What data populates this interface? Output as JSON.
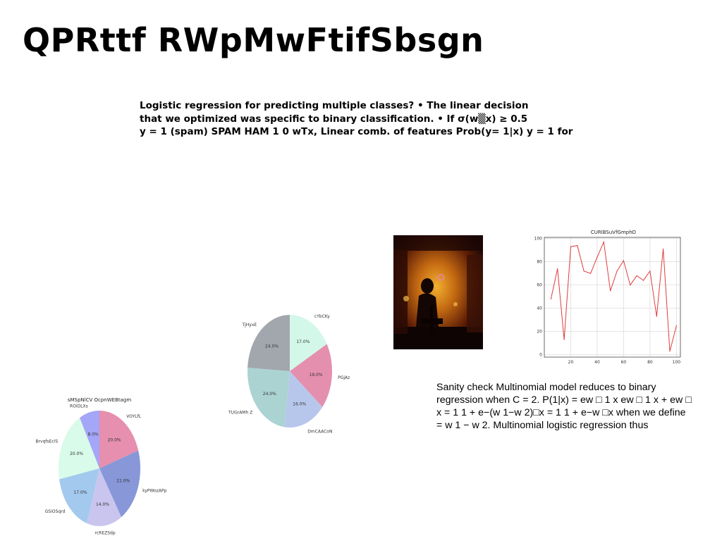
{
  "slide": {
    "title": "QPRttf RWpMwFtifSbsgn",
    "intro_lines": [
      "Logistic regression for predicting multiple classes? • The linear decision",
      "that we optimized was specific to binary classification. • If σ(w▒x) ≥ 0.5",
      "y = 1 (spam) SPAM HAM 1 0 wTx, Linear comb. of features Prob(y= 1|x) y = 1 for"
    ],
    "sanity_lines": [
      "Sanity check Multinomial model reduces to binary",
      "regression when C = 2. P(1|x) = ew □ 1 x ew □ 1 x + ew □",
      "x = 1 1 + e−(w 1−w 2)□x = 1 1 + e−w □x when we define",
      "= w 1 − w 2. Multinomial logistic regression thus"
    ],
    "photo_icon": "dark-orange-scene-photo"
  },
  "chart_data": [
    {
      "type": "pie",
      "title": "sMSpNlCV OcpnWEBtagm",
      "labels": [
        "VOYLfL",
        "kyPWozAPp",
        "rcREZSdp",
        "GSiOSqrd",
        "BrvqfsEclS",
        "ROiDLXs"
      ],
      "values": [
        20.0,
        21.0,
        14.0,
        17.0,
        20.0,
        8.0
      ],
      "value_labels": [
        "20.0%",
        "21.0%",
        "14.0%",
        "17.0%",
        "20.0%",
        "8.0%"
      ],
      "colors": [
        "#e68fae",
        "#8797d8",
        "#c9c5ee",
        "#a3c9ee",
        "#d9fbe9",
        "#a4a6f7"
      ]
    },
    {
      "type": "pie",
      "title": "",
      "labels": [
        "cYbCKy",
        "PGjAz",
        "DmCAACoN",
        "TUGrAMh Z",
        "TjHyxE"
      ],
      "values": [
        17.0,
        19.0,
        16.0,
        24.0,
        24.0
      ],
      "value_labels": [
        "17.0%",
        "19.0%",
        "16.0%",
        "24.0%",
        "24.0%"
      ],
      "colors": [
        "#d3f8ea",
        "#e58fae",
        "#b7c7ec",
        "#abd3d2",
        "#a2a7ad"
      ]
    },
    {
      "type": "line",
      "title": "CURlBSuVfGmphD",
      "x": [
        5,
        10,
        15,
        20,
        25,
        30,
        35,
        40,
        45,
        50,
        55,
        60,
        65,
        70,
        75,
        80,
        85,
        90,
        95,
        100
      ],
      "y": [
        48,
        74,
        13,
        93,
        94,
        72,
        70,
        84,
        97,
        55,
        72,
        81,
        60,
        68,
        64,
        72,
        33,
        91,
        3,
        25
      ],
      "xticks": [
        20,
        40,
        60,
        80,
        100
      ],
      "yticks": [
        0,
        20,
        40,
        60,
        80,
        100
      ],
      "xlim": [
        0,
        103
      ],
      "ylim": [
        -2,
        101
      ],
      "grid": true,
      "color": "#e03c3c"
    }
  ]
}
